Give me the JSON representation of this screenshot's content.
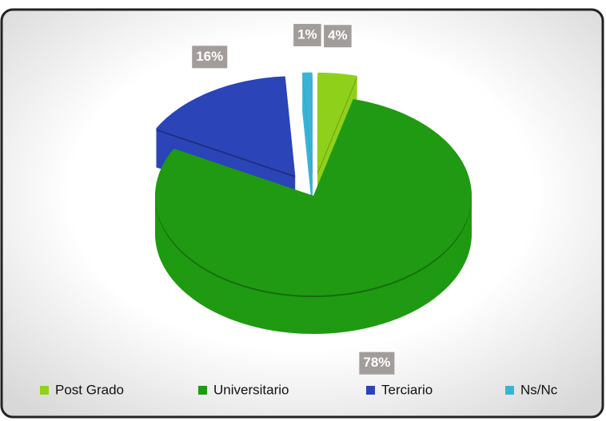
{
  "chart_data": {
    "type": "pie",
    "categories": [
      "Post Grado",
      "Universitario",
      "Terciario",
      "Ns/Nc"
    ],
    "values": [
      4,
      78,
      16,
      1
    ],
    "value_labels": [
      "4%",
      "78%",
      "16%",
      "1%"
    ],
    "colors": [
      "#8fd11a",
      "#1f9a12",
      "#2b44b8",
      "#3ab4d6"
    ],
    "exploded": [
      true,
      false,
      true,
      true
    ],
    "legend": "bottom"
  }
}
